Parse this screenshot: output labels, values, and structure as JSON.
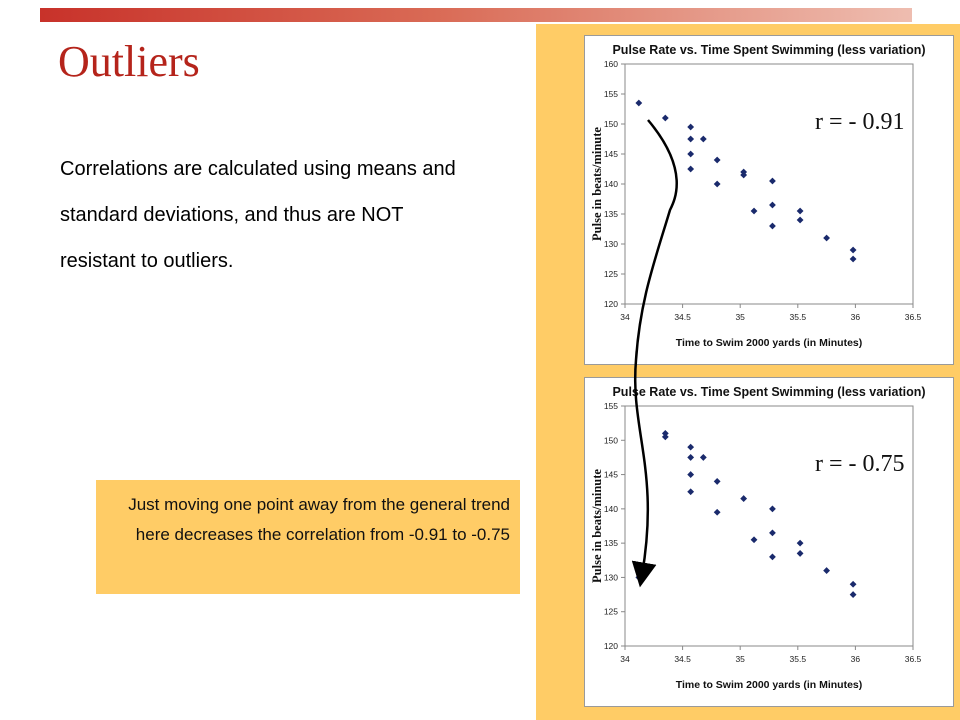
{
  "slide": {
    "title": "Outliers",
    "body_text": "Correlations are calculated using means and standard deviations, and thus are NOT resistant to outliers.",
    "note": "Just moving one point away from the general trend here decreases the correlation from -0.91 to -0.75"
  },
  "colors": {
    "title": "#b5241b",
    "accent_panel": "#ffcc66",
    "marker": "#1a2a6c"
  },
  "chart_data": [
    {
      "type": "scatter",
      "title": "Pulse Rate vs. Time Spent Swimming (less variation)",
      "xlabel": "Time to Swim 2000 yards (in Minutes)",
      "ylabel": "Pulse in beats/minute",
      "annotation": "r = - 0.91",
      "xlim": [
        34,
        36.5
      ],
      "ylim": [
        120,
        160
      ],
      "xticks": [
        "34",
        "34.5",
        "35",
        "35.5",
        "36",
        "36.5"
      ],
      "yticks": [
        "120",
        "125",
        "130",
        "135",
        "140",
        "145",
        "150",
        "155",
        "160"
      ],
      "grid": false,
      "points": [
        [
          34.12,
          153.5
        ],
        [
          34.35,
          151
        ],
        [
          34.57,
          149.5
        ],
        [
          34.57,
          147.5
        ],
        [
          34.57,
          145
        ],
        [
          34.57,
          142.5
        ],
        [
          34.68,
          147.5
        ],
        [
          34.8,
          144
        ],
        [
          34.8,
          140
        ],
        [
          35.03,
          141.5
        ],
        [
          35.03,
          142
        ],
        [
          35.12,
          135.5
        ],
        [
          35.28,
          140.5
        ],
        [
          35.28,
          136.5
        ],
        [
          35.28,
          133
        ],
        [
          35.52,
          135.5
        ],
        [
          35.52,
          134
        ],
        [
          35.75,
          131
        ],
        [
          35.98,
          129
        ],
        [
          35.98,
          127.5
        ]
      ]
    },
    {
      "type": "scatter",
      "title": "Pulse Rate vs. Time Spent Swimming (less variation)",
      "xlabel": "Time to Swim 2000 yards (in Minutes)",
      "ylabel": "Pulse in beats/minute",
      "annotation": "r = - 0.75",
      "xlim": [
        34,
        36.5
      ],
      "ylim": [
        120,
        155
      ],
      "xticks": [
        "34",
        "34.5",
        "35",
        "35.5",
        "36",
        "36.5"
      ],
      "yticks": [
        "120",
        "125",
        "130",
        "135",
        "140",
        "145",
        "150",
        "155"
      ],
      "grid": false,
      "points": [
        [
          34.12,
          130
        ],
        [
          34.35,
          151
        ],
        [
          34.35,
          150.5
        ],
        [
          34.57,
          149
        ],
        [
          34.57,
          147.5
        ],
        [
          34.57,
          145
        ],
        [
          34.57,
          142.5
        ],
        [
          34.68,
          147.5
        ],
        [
          34.8,
          144
        ],
        [
          34.8,
          139.5
        ],
        [
          35.03,
          141.5
        ],
        [
          35.12,
          135.5
        ],
        [
          35.28,
          140
        ],
        [
          35.28,
          136.5
        ],
        [
          35.28,
          133
        ],
        [
          35.52,
          135
        ],
        [
          35.52,
          133.5
        ],
        [
          35.75,
          131
        ],
        [
          35.98,
          129
        ],
        [
          35.98,
          127.5
        ]
      ]
    }
  ]
}
